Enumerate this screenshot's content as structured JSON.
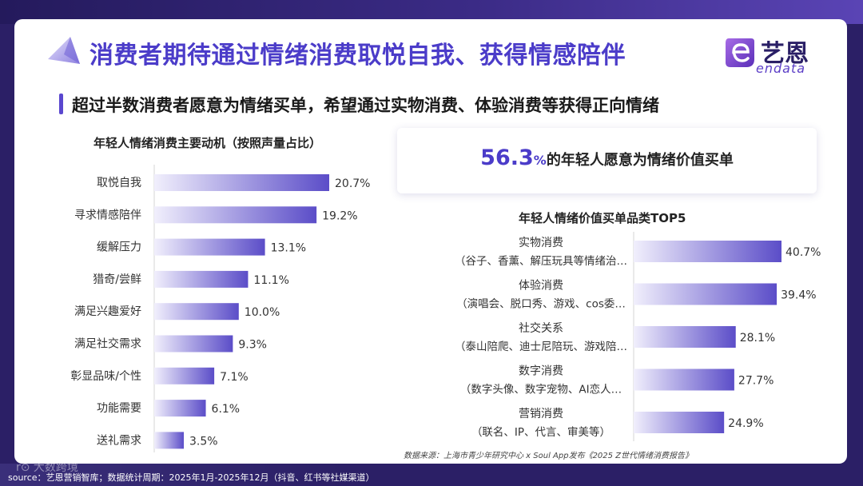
{
  "header": {
    "title": "消费者期待通过情绪消费取悦自我、获得情感陪伴",
    "subtitle": "超过半数消费者愿意为情绪买单，希望通过实物消费、体验消费等获得正向情绪"
  },
  "logo": {
    "cn": "艺恩",
    "en": "endata",
    "icon": "endata-e-logo-icon"
  },
  "highlight": {
    "number": "56.3",
    "unit": "%",
    "text": "的年轻人愿意为情绪价值买单"
  },
  "source_note": "数据来源：上海市青少年研究中心 x Soul App发布《2025 Z世代情绪消费报告》",
  "footer": "source：艺恩营销智库；数据统计周期：2025年1月-2025年12月（抖音、红书等社媒渠道）",
  "watermark": "r⊙ 大数跨境",
  "colors": {
    "accent": "#4b3cc9",
    "bar_dark": "#5b4dc8",
    "bar_light": "#f1effc"
  },
  "chart_data": [
    {
      "type": "bar",
      "orientation": "horizontal",
      "title": "年轻人情绪消费主要动机（按照声量占比）",
      "categories": [
        "取悦自我",
        "寻求情感陪伴",
        "缓解压力",
        "猎奇/尝鲜",
        "满足兴趣爱好",
        "满足社交需求",
        "彰显品味/个性",
        "功能需要",
        "送礼需求"
      ],
      "values": [
        20.7,
        19.2,
        13.1,
        11.1,
        10.0,
        9.3,
        7.1,
        6.1,
        3.5
      ],
      "value_labels": [
        "20.7%",
        "19.2%",
        "13.1%",
        "11.1%",
        "10.0%",
        "9.3%",
        "7.1%",
        "6.1%",
        "3.5%"
      ],
      "unit": "%",
      "xlim": [
        0,
        20.7
      ]
    },
    {
      "type": "bar",
      "orientation": "horizontal",
      "title": "年轻人情绪价值买单品类TOP5",
      "categories": [
        "实物消费",
        "体验消费",
        "社交关系",
        "数字消费",
        "营销消费"
      ],
      "category_details": [
        "（谷子、香薰、解压玩具等情绪治…",
        "（演唱会、脱口秀、游戏、cos委…",
        "（泰山陪爬、迪士尼陪玩、游戏陪…",
        "（数字头像、数字宠物、AI恋人…",
        "（联名、IP、代言、审美等）"
      ],
      "values": [
        40.7,
        39.4,
        28.1,
        27.7,
        24.9
      ],
      "value_labels": [
        "40.7%",
        "39.4%",
        "28.1%",
        "27.7%",
        "24.9%"
      ],
      "unit": "%",
      "xlim": [
        0,
        40.7
      ]
    }
  ]
}
